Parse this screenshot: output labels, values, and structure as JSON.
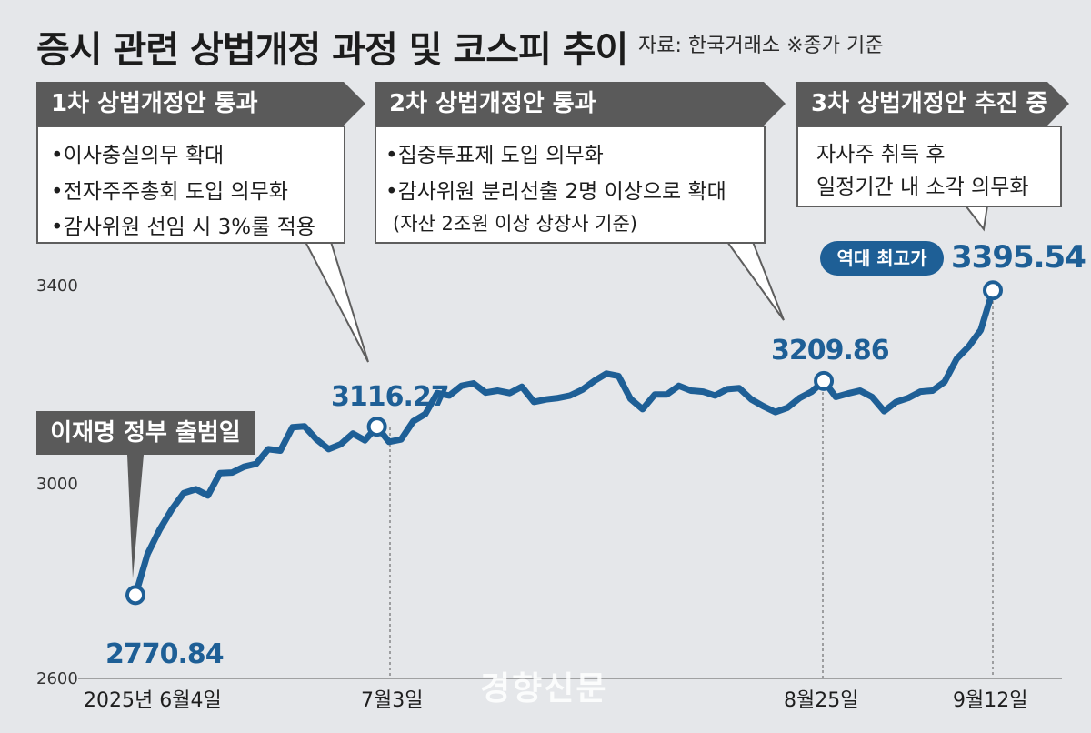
{
  "header": {
    "title": "증시 관련 상법개정 과정 및 코스피 추이",
    "source": "자료: 한국거래소 ※종가 기준"
  },
  "callouts": [
    {
      "tab": "1차 상법개정안 통과",
      "lines": [
        "•이사충실의무 확대",
        "•전자주주총회 도입 의무화",
        "•감사위원 선임 시 3%룰 적용"
      ]
    },
    {
      "tab": "2차 상법개정안 통과",
      "lines": [
        "•집중투표제 도입 의무화",
        "•감사위원 분리선출 2명 이상으로 확대",
        "(자산 2조원 이상 상장사 기준)"
      ]
    },
    {
      "tab": "3차 상법개정안 추진 중",
      "lines": [
        "자사주 취득 후",
        "일정기간 내 소각 의무화"
      ]
    }
  ],
  "event_label": "이재명 정부 출범일",
  "record_badge": "역대 최고가",
  "point_labels": [
    "2770.84",
    "3116.27",
    "3209.86",
    "3395.54"
  ],
  "watermark": "경향신문",
  "chart_data": {
    "type": "line",
    "title": "증시 관련 상법개정 과정 및 코스피 추이",
    "ylim": [
      2600,
      3450
    ],
    "yticks": [
      "2600",
      "3000",
      "3400"
    ],
    "xticks": [
      "2025년 6월4일",
      "7월3일",
      "8월25일",
      "9월12일"
    ],
    "grid": false,
    "color": "#1e5f96",
    "values": [
      2770.84,
      2855,
      2905,
      2946,
      2980,
      2988,
      2975,
      3021,
      3022,
      3034,
      3040,
      3070,
      3067,
      3115,
      3117,
      3090,
      3070,
      3080,
      3102,
      3088,
      3116.27,
      3085,
      3090,
      3127,
      3142,
      3185,
      3180,
      3200,
      3205,
      3186,
      3190,
      3185,
      3198,
      3167,
      3172,
      3175,
      3180,
      3192,
      3210,
      3225,
      3220,
      3173,
      3152,
      3182,
      3182,
      3200,
      3190,
      3188,
      3180,
      3193,
      3195,
      3172,
      3158,
      3146,
      3155,
      3175,
      3188,
      3209.86,
      3177,
      3184,
      3190,
      3177,
      3148,
      3167,
      3175,
      3188,
      3190,
      3208,
      3255,
      3280,
      3314,
      3395.54
    ],
    "annotated_points": [
      {
        "date": "2025년 6월4일",
        "value": 2770.84
      },
      {
        "date": "7월3일",
        "value": 3116.27
      },
      {
        "date": "8월25일",
        "value": 3209.86
      },
      {
        "date": "9월12일",
        "value": 3395.54
      }
    ]
  }
}
